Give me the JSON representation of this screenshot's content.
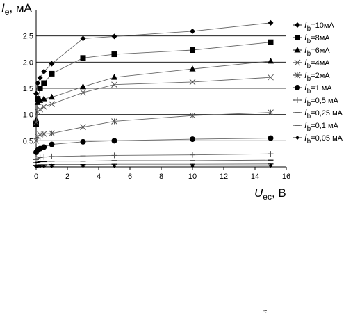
{
  "chart_data": {
    "type": "line",
    "ylabel": {
      "symbol": "I",
      "sub": "e",
      "unit": ", мА"
    },
    "xlabel": {
      "symbol": "U",
      "sub": "ec",
      "unit": ", В"
    },
    "xlim": [
      0,
      16
    ],
    "ylim": [
      0,
      3.0
    ],
    "xticks": [
      "0",
      "2",
      "4",
      "6",
      "8",
      "10",
      "12",
      "14",
      "16"
    ],
    "yticks": [
      "0,5",
      "1,0",
      "1,5",
      "2,0",
      "2,5"
    ],
    "grid": "horizontal",
    "legend_position": "right",
    "series": [
      {
        "name": "=10мА",
        "marker": "diamond",
        "x": [
          0,
          0.1,
          0.25,
          0.5,
          1,
          3,
          5,
          10,
          15
        ],
        "y": [
          1.4,
          1.6,
          1.7,
          1.82,
          1.97,
          2.45,
          2.49,
          2.59,
          2.75
        ]
      },
      {
        "name": "=8мА",
        "marker": "square",
        "x": [
          0,
          0.1,
          0.25,
          0.5,
          1,
          3,
          5,
          10,
          15
        ],
        "y": [
          0.82,
          1.3,
          1.5,
          1.6,
          1.78,
          2.08,
          2.15,
          2.23,
          2.38
        ]
      },
      {
        "name": "=6мА",
        "marker": "triangle",
        "x": [
          0,
          0.1,
          0.25,
          0.5,
          1,
          3,
          5,
          10,
          15
        ],
        "y": [
          0.9,
          1.23,
          1.27,
          1.3,
          1.33,
          1.53,
          1.71,
          1.87,
          2.02
        ]
      },
      {
        "name": "=4мА",
        "marker": "x",
        "x": [
          0,
          0.1,
          0.25,
          0.5,
          1,
          3,
          5,
          10,
          15
        ],
        "y": [
          0.85,
          1.05,
          1.1,
          1.15,
          1.2,
          1.42,
          1.57,
          1.62,
          1.71
        ]
      },
      {
        "name": "=2мА",
        "marker": "star",
        "x": [
          0,
          0.1,
          0.25,
          0.5,
          1,
          3,
          5,
          10,
          15
        ],
        "y": [
          0.5,
          0.58,
          0.62,
          0.63,
          0.64,
          0.76,
          0.87,
          0.98,
          1.04
        ]
      },
      {
        "name": "=1 мА",
        "marker": "circle",
        "x": [
          0,
          0.1,
          0.25,
          0.5,
          1,
          3,
          5,
          10,
          15
        ],
        "y": [
          0.28,
          0.32,
          0.35,
          0.38,
          0.43,
          0.48,
          0.5,
          0.53,
          0.55
        ]
      },
      {
        "name": "=0,5 мА",
        "marker": "plus",
        "x": [
          0,
          0.1,
          0.25,
          0.5,
          1,
          3,
          5,
          10,
          15
        ],
        "y": [
          0.14,
          0.16,
          0.18,
          0.19,
          0.2,
          0.21,
          0.22,
          0.23,
          0.25
        ]
      },
      {
        "name": "=0,25 мА",
        "marker": "dash",
        "x": [
          0,
          0.1,
          0.25,
          0.5,
          1,
          3,
          5,
          10,
          15
        ],
        "y": [
          0.08,
          0.09,
          0.1,
          0.1,
          0.11,
          0.11,
          0.12,
          0.12,
          0.13
        ]
      },
      {
        "name": "=0,1 мА",
        "marker": "dash",
        "x": [
          0,
          0.1,
          0.25,
          0.5,
          1,
          3,
          5,
          10,
          15
        ],
        "y": [
          0.03,
          0.035,
          0.04,
          0.04,
          0.045,
          0.045,
          0.05,
          0.05,
          0.055
        ]
      },
      {
        "name": "=0,05 мА",
        "marker": "smalldiamond",
        "x": [
          0,
          0.1,
          0.25,
          0.5,
          1,
          3,
          5,
          10,
          15
        ],
        "y": [
          0.01,
          0.012,
          0.015,
          0.015,
          0.018,
          0.02,
          0.02,
          0.022,
          0.025
        ]
      }
    ],
    "legend_symbol": "I",
    "legend_sub": "b"
  },
  "footer_mark": "≈"
}
